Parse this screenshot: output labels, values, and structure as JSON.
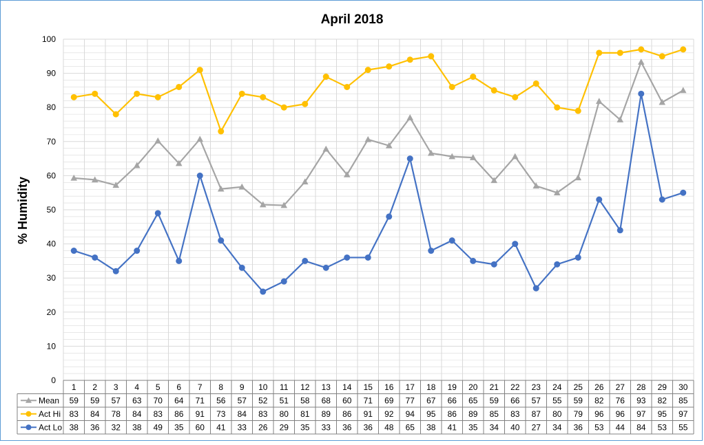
{
  "chart_data": {
    "type": "line",
    "title": "April 2018",
    "ylabel": "% Humidity",
    "xlabel": "",
    "ylim": [
      0,
      100
    ],
    "y_major_ticks": [
      0,
      10,
      20,
      30,
      40,
      50,
      60,
      70,
      80,
      90,
      100
    ],
    "minor_grid_step": 2,
    "grid": true,
    "legend": "data-table-bottom",
    "categories": [
      "1",
      "2",
      "3",
      "4",
      "5",
      "6",
      "7",
      "8",
      "9",
      "10",
      "11",
      "12",
      "13",
      "14",
      "15",
      "16",
      "17",
      "18",
      "19",
      "20",
      "21",
      "22",
      "23",
      "24",
      "25",
      "26",
      "27",
      "28",
      "29",
      "30"
    ],
    "series": [
      {
        "name": "Mean",
        "color": "#a5a5a5",
        "marker": "triangle",
        "values": [
          59.3,
          58.8,
          57.2,
          63.0,
          70.2,
          63.6,
          70.7,
          56.1,
          56.7,
          51.5,
          51.3,
          58.2,
          67.8,
          60.3,
          70.6,
          68.8,
          77.0,
          66.6,
          65.6,
          65.3,
          58.6,
          65.6,
          57.0,
          55.0,
          59.4,
          81.8,
          76.4,
          93.3,
          81.5,
          85.0
        ],
        "labels": [
          "59",
          "59",
          "57",
          "63",
          "70",
          "64",
          "71",
          "56",
          "57",
          "52",
          "51",
          "58",
          "68",
          "60",
          "71",
          "69",
          "77",
          "67",
          "66",
          "65",
          "59",
          "66",
          "57",
          "55",
          "59",
          "82",
          "76",
          "93",
          "82",
          "85"
        ]
      },
      {
        "name": "Act Hi",
        "color": "#ffc000",
        "marker": "circle",
        "values": [
          83,
          84,
          78,
          84,
          83,
          86,
          91,
          73,
          84,
          83,
          80,
          81,
          89,
          86,
          91,
          92,
          94,
          95,
          86,
          89,
          85,
          83,
          87,
          80,
          79,
          96,
          96,
          97,
          95,
          97
        ],
        "labels": [
          "83",
          "84",
          "78",
          "84",
          "83",
          "86",
          "91",
          "73",
          "84",
          "83",
          "80",
          "81",
          "89",
          "86",
          "91",
          "92",
          "94",
          "95",
          "86",
          "89",
          "85",
          "83",
          "87",
          "80",
          "79",
          "96",
          "96",
          "97",
          "95",
          "97"
        ]
      },
      {
        "name": "Act Lo",
        "color": "#4472c4",
        "marker": "circle",
        "values": [
          38,
          36,
          32,
          38,
          49,
          35,
          60,
          41,
          33,
          26,
          29,
          35,
          33,
          36,
          36,
          48,
          65,
          38,
          41,
          35,
          34,
          40,
          27,
          34,
          36,
          53,
          44,
          84,
          53,
          55
        ],
        "labels": [
          "38",
          "36",
          "32",
          "38",
          "49",
          "35",
          "60",
          "41",
          "33",
          "26",
          "29",
          "35",
          "33",
          "36",
          "36",
          "48",
          "65",
          "38",
          "41",
          "35",
          "34",
          "40",
          "27",
          "34",
          "36",
          "53",
          "44",
          "84",
          "53",
          "55"
        ]
      }
    ]
  },
  "colors": {
    "frame_border": "#5b9bd5",
    "grid": "#d9d9d9",
    "table_border": "#808080"
  }
}
